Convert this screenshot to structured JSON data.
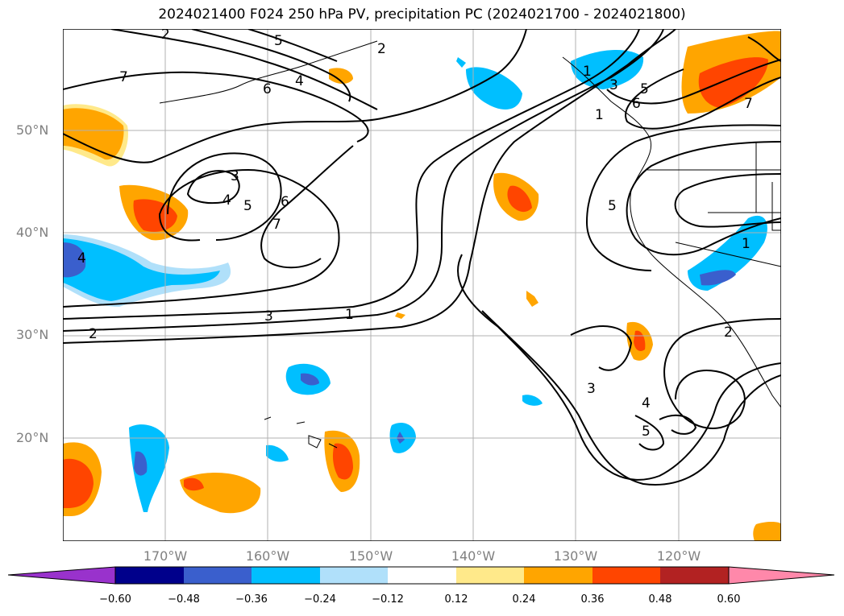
{
  "title": "2024021400 F024 250 hPa PV, precipitation PC (2024021700 - 2024021800)",
  "lat_labels": [
    "50°N",
    "40°N",
    "30°N",
    "20°N"
  ],
  "lon_labels": [
    "170°W",
    "160°W",
    "150°W",
    "140°W",
    "130°W",
    "120°W"
  ],
  "contour_labels": [
    "7",
    "6",
    "5",
    "4",
    "3",
    "2",
    "1",
    "2",
    "4",
    "5",
    "6",
    "7",
    "4",
    "3",
    "2",
    "1",
    "3",
    "4",
    "5",
    "6",
    "1",
    "3",
    "5",
    "7",
    "5",
    "1",
    "2"
  ],
  "colorbar": {
    "ticks": [
      "−0.60",
      "−0.48",
      "−0.36",
      "−0.24",
      "−0.12",
      "0.12",
      "0.24",
      "0.36",
      "0.48",
      "0.60"
    ],
    "colors": [
      "#9932cc",
      "#00008b",
      "#3a5fcd",
      "#00bfff",
      "#b0e0fa",
      "#ffffff",
      "#ffe98a",
      "#ffa500",
      "#ff4500",
      "#b22222",
      "#ff88aa"
    ]
  }
}
